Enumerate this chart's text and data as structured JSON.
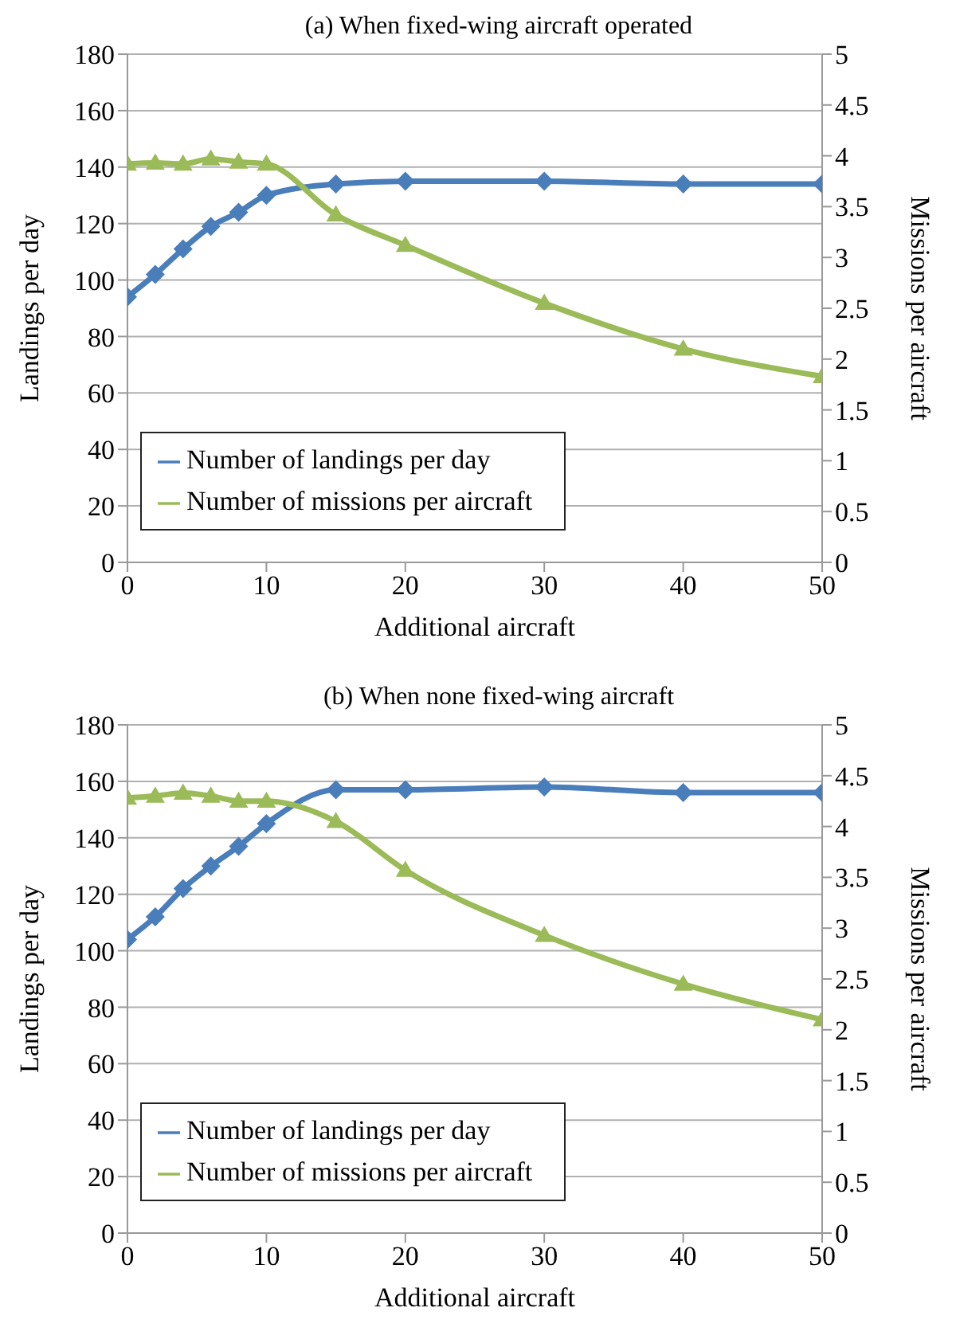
{
  "chart_data": [
    {
      "type": "line",
      "title": "(a) When fixed-wing aircraft operated",
      "xlabel": "Additional aircraft",
      "ylabel": "Landings per day",
      "y2label": "Missions per aircraft",
      "x": [
        0,
        2,
        4,
        6,
        8,
        10,
        15,
        20,
        30,
        40,
        50
      ],
      "series": [
        {
          "name": "Number of landings per day",
          "color": "#4a7ebb",
          "marker": "diamond",
          "values": [
            94,
            102,
            111,
            119,
            124,
            130,
            134,
            135,
            135,
            134,
            134
          ]
        },
        {
          "name": "Number of missions per aircraft",
          "color": "#9bbb59",
          "marker": "triangle",
          "axis": "y2",
          "values": [
            3.92,
            3.93,
            3.92,
            3.97,
            3.94,
            3.92,
            3.42,
            3.12,
            2.55,
            2.1,
            1.83
          ]
        }
      ],
      "xlim": [
        0,
        50
      ],
      "xticks": [
        0,
        10,
        20,
        30,
        40,
        50
      ],
      "ylim": [
        0,
        180
      ],
      "yticks": [
        0,
        20,
        40,
        60,
        80,
        100,
        120,
        140,
        160,
        180
      ],
      "y2lim": [
        0,
        5
      ],
      "y2ticks": [
        0,
        0.5,
        1,
        1.5,
        2,
        2.5,
        3,
        3.5,
        4,
        4.5,
        5
      ],
      "grid": "y",
      "legend": "bottom left",
      "line_style": "solid"
    },
    {
      "type": "line",
      "title": "(b) When none fixed-wing aircraft",
      "xlabel": "Additional aircraft",
      "ylabel": "Landings per day",
      "y2label": "Missions per aircraft",
      "x": [
        0,
        2,
        4,
        6,
        8,
        10,
        15,
        20,
        30,
        40,
        50
      ],
      "series": [
        {
          "name": "Number of landings per day",
          "color": "#4a7ebb",
          "marker": "diamond",
          "values": [
            104,
            112,
            122,
            130,
            137,
            145,
            157,
            157,
            158,
            156,
            156
          ]
        },
        {
          "name": "Number of missions per aircraft",
          "color": "#9bbb59",
          "marker": "triangle",
          "axis": "y2",
          "values": [
            4.28,
            4.3,
            4.33,
            4.3,
            4.25,
            4.25,
            4.05,
            3.57,
            2.93,
            2.45,
            2.1
          ]
        }
      ],
      "xlim": [
        0,
        50
      ],
      "xticks": [
        0,
        10,
        20,
        30,
        40,
        50
      ],
      "ylim": [
        0,
        180
      ],
      "yticks": [
        0,
        20,
        40,
        60,
        80,
        100,
        120,
        140,
        160,
        180
      ],
      "y2lim": [
        0,
        5
      ],
      "y2ticks": [
        0,
        0.5,
        1,
        1.5,
        2,
        2.5,
        3,
        3.5,
        4,
        4.5,
        5
      ],
      "grid": "y",
      "legend": "bottom left",
      "line_style": "solid"
    }
  ]
}
